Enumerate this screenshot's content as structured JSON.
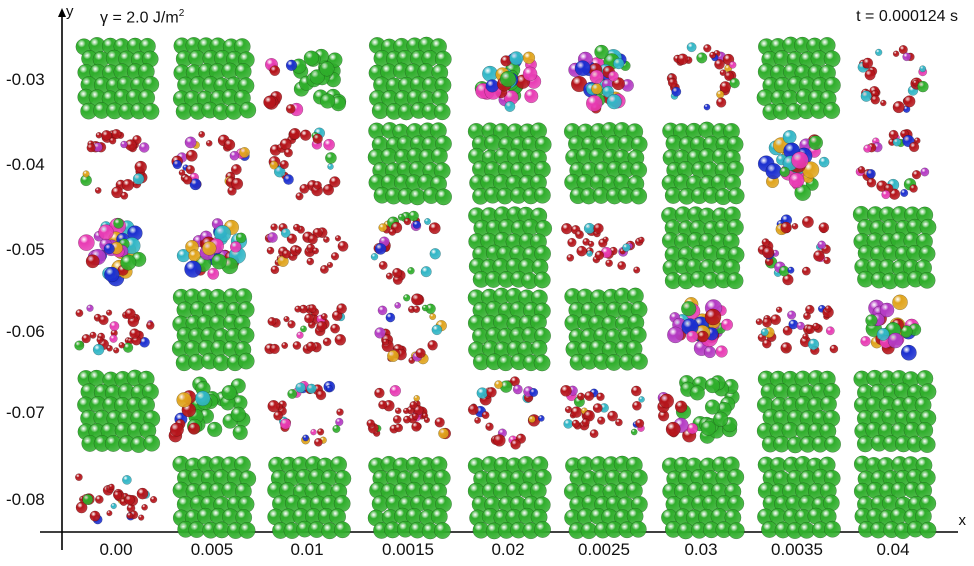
{
  "header": {
    "gamma_text": "γ = 2.0 J/m",
    "gamma_exp": "2",
    "time_label": "t = 0.000124 s"
  },
  "axes": {
    "x_label": "x",
    "y_label": "y",
    "x_ticks": [
      "0.00",
      "0.005",
      "0.01",
      "0.0015",
      "0.02",
      "0.0025",
      "0.03",
      "0.0035",
      "0.04"
    ],
    "y_ticks": [
      "-0.03",
      "-0.04",
      "-0.05",
      "-0.06",
      "-0.07",
      "-0.08"
    ]
  },
  "palette": {
    "green": "#2fae2b",
    "red": "#b5151b",
    "yellow": "#e0a41c",
    "magenta": "#b43bc4",
    "blue": "#1b2fd0",
    "cyan": "#31b6c6",
    "pink": "#e83bb4",
    "axis": "#000000"
  },
  "grid": {
    "states": [
      [
        "cluster",
        "cluster",
        "partial",
        "cluster",
        "mixed",
        "mixed",
        "ring",
        "cluster",
        "ring"
      ],
      [
        "ring",
        "ring",
        "ring",
        "cluster",
        "cluster",
        "cluster",
        "cluster",
        "mixed",
        "ring"
      ],
      [
        "mixed",
        "mixed",
        "scatter",
        "ring",
        "cluster",
        "scatter",
        "cluster",
        "ring",
        "cluster"
      ],
      [
        "scatter",
        "cluster",
        "scatter",
        "ring",
        "cluster",
        "cluster",
        "mixed",
        "scatter",
        "mixed"
      ],
      [
        "cluster",
        "partial",
        "ring",
        "scatter",
        "ring",
        "scatter",
        "partial",
        "cluster",
        "cluster"
      ],
      [
        "scatter",
        "cluster",
        "cluster",
        "cluster",
        "cluster",
        "cluster",
        "cluster",
        "cluster",
        "cluster"
      ]
    ]
  }
}
